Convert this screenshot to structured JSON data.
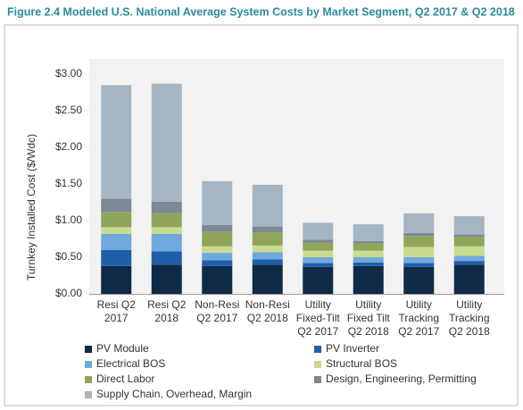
{
  "chart_data": {
    "type": "stacked-bar",
    "title": "Figure 2.4 Modeled U.S. National Average System Costs by Market Segment, Q2 2017 & Q2 2018",
    "y_label": "Turnkey Installed Cost ($/Wdc)",
    "categories": [
      [
        "Resi Q2",
        "2017"
      ],
      [
        "Resi Q2",
        "2018"
      ],
      [
        "Non-Resi",
        "Q2 2017"
      ],
      [
        "Non-Resi",
        "Q2 2018"
      ],
      [
        "Utility",
        "Fixed-Tilt",
        "Q2 2017"
      ],
      [
        "Utility",
        "Fixed Tilt",
        "Q2 2018"
      ],
      [
        "Utility",
        "Tracking",
        "Q2 2017"
      ],
      [
        "Utility",
        "Tracking",
        "Q2 2018"
      ]
    ],
    "series": [
      {
        "name": "PV Module",
        "color": "#0f2a47",
        "values": [
          0.38,
          0.4,
          0.38,
          0.4,
          0.37,
          0.38,
          0.37,
          0.4
        ]
      },
      {
        "name": "PV Inverter",
        "color": "#1f5fa8",
        "values": [
          0.22,
          0.18,
          0.08,
          0.07,
          0.05,
          0.05,
          0.05,
          0.05
        ]
      },
      {
        "name": "Electrical BOS",
        "color": "#6fa8dc",
        "values": [
          0.22,
          0.24,
          0.1,
          0.1,
          0.08,
          0.07,
          0.08,
          0.07
        ]
      },
      {
        "name": "Structural BOS",
        "color": "#c8db8e",
        "values": [
          0.09,
          0.09,
          0.09,
          0.09,
          0.09,
          0.09,
          0.14,
          0.13
        ]
      },
      {
        "name": "Direct Labor",
        "color": "#8fa65a",
        "values": [
          0.21,
          0.19,
          0.2,
          0.18,
          0.11,
          0.1,
          0.15,
          0.13
        ]
      },
      {
        "name": "Design, Engineering, Permitting",
        "color": "#7d8994",
        "values": [
          0.18,
          0.16,
          0.09,
          0.08,
          0.04,
          0.03,
          0.04,
          0.03
        ]
      },
      {
        "name": "Supply Chain, Overhead, Margin",
        "color": "#a6b5c2",
        "values": [
          1.55,
          1.61,
          0.6,
          0.57,
          0.23,
          0.23,
          0.27,
          0.25
        ]
      }
    ],
    "ylim": [
      0,
      3.2
    ],
    "yticks": [
      {
        "value": 0,
        "label": "$0.00"
      },
      {
        "value": 0.5,
        "label": "$0.50"
      },
      {
        "value": 1,
        "label": "$1.00"
      },
      {
        "value": 1.5,
        "label": "$1.50"
      },
      {
        "value": 2,
        "label": "$2.00"
      },
      {
        "value": 2.5,
        "label": "$2.50"
      },
      {
        "value": 3,
        "label": "$3.00"
      }
    ]
  }
}
